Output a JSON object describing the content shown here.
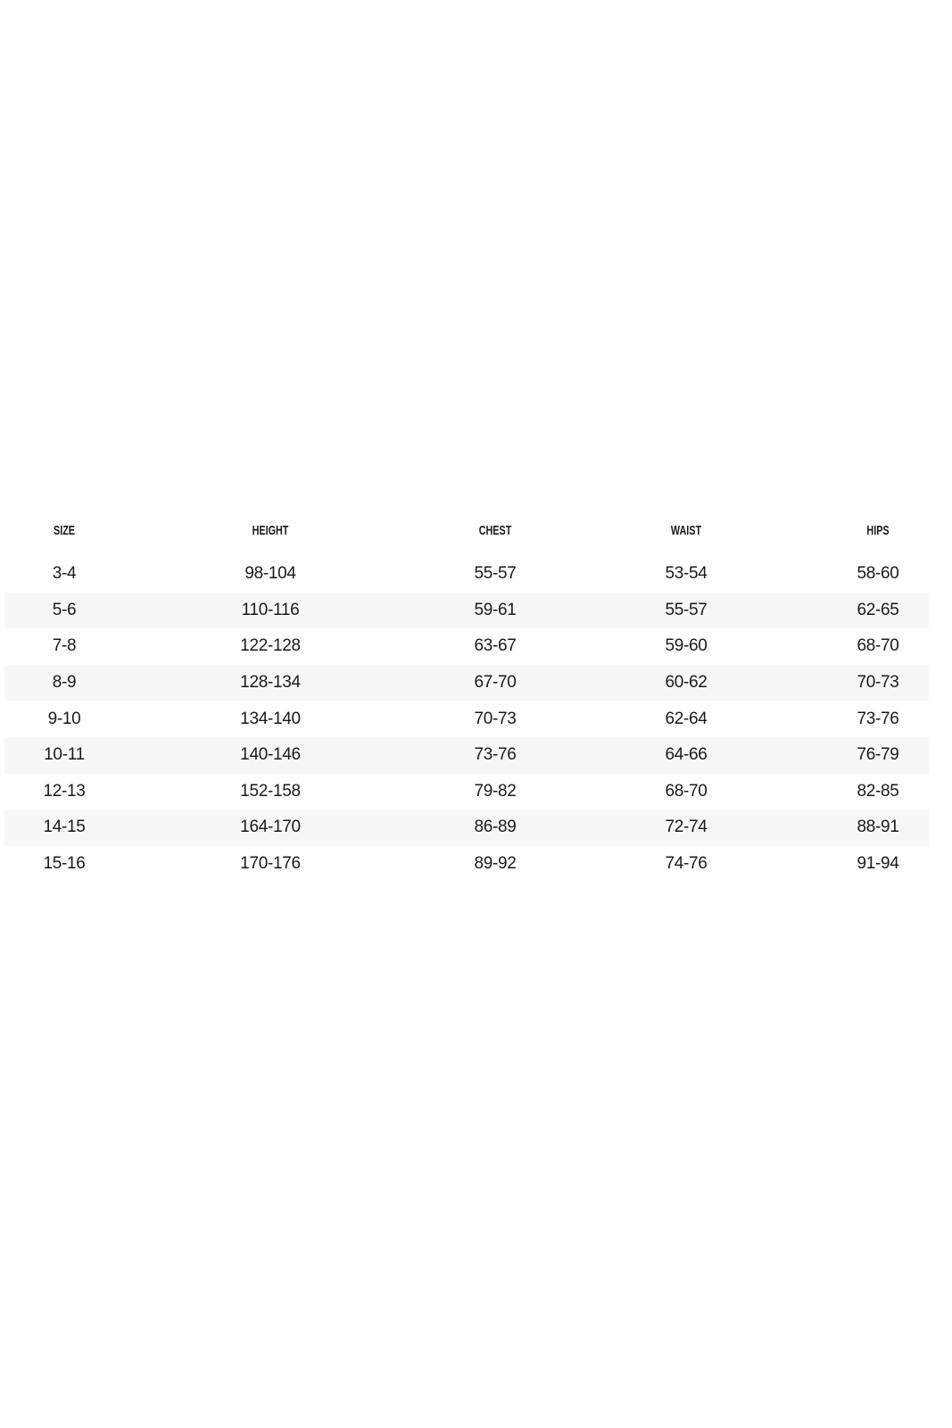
{
  "table": {
    "headers": [
      "SIZE",
      "HEIGHT",
      "CHEST",
      "WAIST",
      "HIPS"
    ],
    "rows": [
      [
        "3-4",
        "98-104",
        "55-57",
        "53-54",
        "58-60"
      ],
      [
        "5-6",
        "110-116",
        "59-61",
        "55-57",
        "62-65"
      ],
      [
        "7-8",
        "122-128",
        "63-67",
        "59-60",
        "68-70"
      ],
      [
        "8-9",
        "128-134",
        "67-70",
        "60-62",
        "70-73"
      ],
      [
        "9-10",
        "134-140",
        "70-73",
        "62-64",
        "73-76"
      ],
      [
        "10-11",
        "140-146",
        "73-76",
        "64-66",
        "76-79"
      ],
      [
        "12-13",
        "152-158",
        "79-82",
        "68-70",
        "82-85"
      ],
      [
        "14-15",
        "164-170",
        "86-89",
        "72-74",
        "88-91"
      ],
      [
        "15-16",
        "170-176",
        "89-92",
        "74-76",
        "91-94"
      ]
    ],
    "stripe_color": "#f7f7f7"
  }
}
